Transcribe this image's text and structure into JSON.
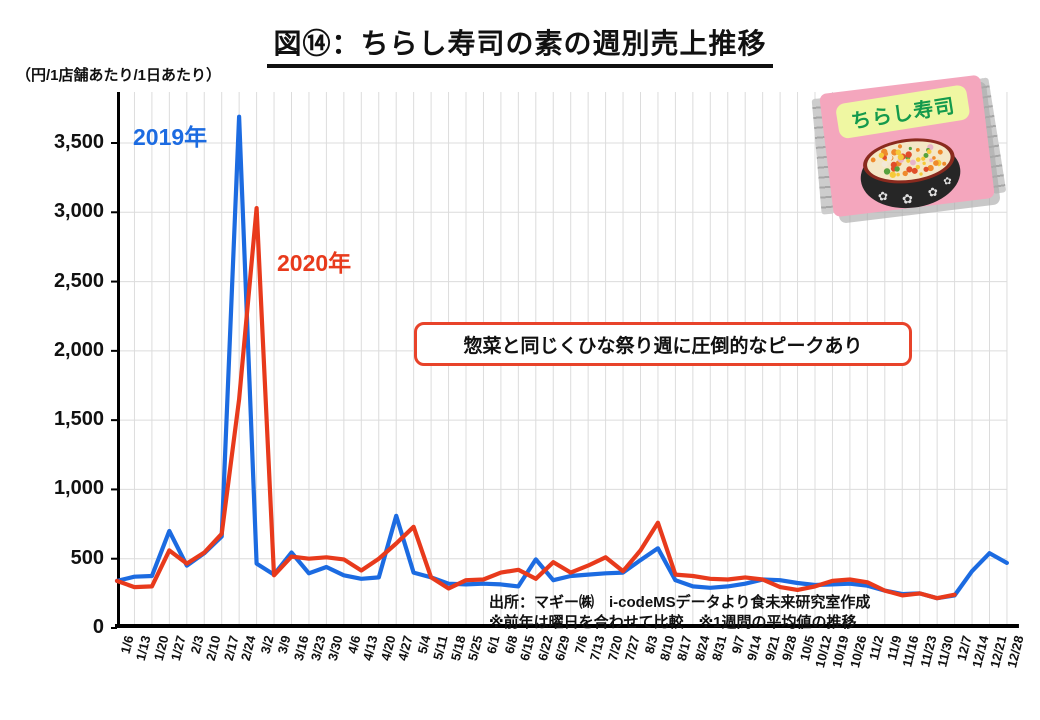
{
  "title": "図⑭：ちらし寿司の素の週別売上推移",
  "unit_label": "（円/1店舗あたり/1日あたり）",
  "series_labels": {
    "y2019": "2019年",
    "y2020": "2020年"
  },
  "annotation": "惣菜と同じくひな祭り週に圧倒的なピークあり",
  "source_line1": "出所：マギー㈱　i-codeMSデータより食未来研究室作成",
  "source_line2": "※前年は曜日を合わせて比較　※1週間の平均値の推移",
  "package": {
    "label": "ちらし寿司"
  },
  "colors": {
    "blue": "#1C6BE1",
    "red": "#E83A1C",
    "grid": "#DCDCDC",
    "axis": "#000000",
    "annotation_border": "#E8432A"
  },
  "chart_data": {
    "type": "line",
    "title": "図⑭：ちらし寿司の素の週別売上推移",
    "ylabel": "（円/1店舗あたり/1日あたり）",
    "ylim": [
      0,
      3700
    ],
    "yticks": [
      0,
      500,
      1000,
      1500,
      2000,
      2500,
      3000,
      3500
    ],
    "ytick_labels": [
      "0",
      "500",
      "1,000",
      "1,500",
      "2,000",
      "2,500",
      "3,000",
      "3,500"
    ],
    "grid": true,
    "legend_position": "inline-labels",
    "categories": [
      "1/6",
      "1/13",
      "1/20",
      "1/27",
      "2/3",
      "2/10",
      "2/17",
      "2/24",
      "3/2",
      "3/9",
      "3/16",
      "3/23",
      "3/30",
      "4/6",
      "4/13",
      "4/20",
      "4/27",
      "5/4",
      "5/11",
      "5/18",
      "5/25",
      "6/1",
      "6/8",
      "6/15",
      "6/22",
      "6/29",
      "7/6",
      "7/13",
      "7/20",
      "7/27",
      "8/3",
      "8/10",
      "8/17",
      "8/24",
      "8/31",
      "9/7",
      "9/14",
      "9/21",
      "9/28",
      "10/5",
      "10/12",
      "10/19",
      "10/26",
      "11/2",
      "11/9",
      "11/16",
      "11/23",
      "11/30",
      "12/7",
      "12/14",
      "12/21",
      "12/28"
    ],
    "series": [
      {
        "name": "2019年",
        "color": "#1C6BE1",
        "values": [
          340,
          370,
          375,
          700,
          450,
          540,
          660,
          3690,
          465,
          385,
          545,
          395,
          440,
          380,
          355,
          365,
          810,
          400,
          365,
          320,
          315,
          320,
          315,
          300,
          495,
          345,
          375,
          385,
          395,
          400,
          490,
          575,
          345,
          300,
          290,
          300,
          320,
          350,
          345,
          325,
          310,
          315,
          320,
          305,
          270,
          245,
          250,
          215,
          235,
          410,
          540,
          470
        ]
      },
      {
        "name": "2020年",
        "color": "#E83A1C",
        "values": [
          340,
          295,
          300,
          560,
          465,
          545,
          680,
          1650,
          3030,
          380,
          515,
          500,
          510,
          495,
          415,
          500,
          610,
          730,
          365,
          285,
          345,
          350,
          400,
          420,
          355,
          475,
          400,
          450,
          510,
          410,
          560,
          760,
          385,
          375,
          355,
          350,
          365,
          350,
          295,
          275,
          300,
          340,
          350,
          330,
          270,
          235,
          250,
          215,
          240,
          null,
          null,
          null
        ]
      }
    ]
  }
}
